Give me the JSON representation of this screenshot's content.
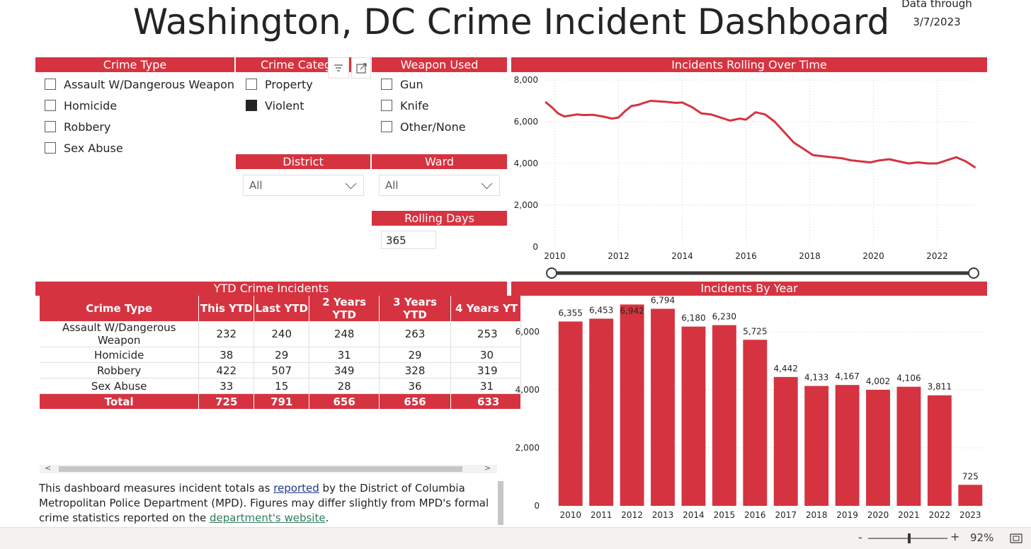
{
  "title": "Washington, DC Crime Incident Dashboard",
  "data_through": {
    "label": "Data through",
    "date": "3/7/2023"
  },
  "filters": {
    "crime_type": {
      "header": "Crime Type",
      "options": [
        {
          "label": "Assault W/Dangerous Weapon",
          "checked": false
        },
        {
          "label": "Homicide",
          "checked": false
        },
        {
          "label": "Robbery",
          "checked": false
        },
        {
          "label": "Sex Abuse",
          "checked": false
        }
      ]
    },
    "crime_category": {
      "header": "Crime Categ",
      "options": [
        {
          "label": "Property",
          "checked": false
        },
        {
          "label": "Violent",
          "checked": true
        }
      ]
    },
    "weapon_used": {
      "header": "Weapon Used",
      "options": [
        {
          "label": "Gun",
          "checked": false
        },
        {
          "label": "Knife",
          "checked": false
        },
        {
          "label": "Other/None",
          "checked": false
        }
      ]
    },
    "district": {
      "header": "District",
      "value": "All"
    },
    "ward": {
      "header": "Ward",
      "value": "All"
    },
    "rolling_days": {
      "header": "Rolling Days",
      "value": "365"
    }
  },
  "ytd": {
    "header": "YTD Crime Incidents",
    "columns": [
      "Crime Type",
      "This YTD",
      "Last YTD",
      "2 Years YTD",
      "3 Years YTD",
      "4 Years YT"
    ],
    "rows": [
      [
        "Assault W/Dangerous Weapon",
        "232",
        "240",
        "248",
        "263",
        "253"
      ],
      [
        "Homicide",
        "38",
        "29",
        "31",
        "29",
        "30"
      ],
      [
        "Robbery",
        "422",
        "507",
        "349",
        "328",
        "319"
      ],
      [
        "Sex Abuse",
        "33",
        "15",
        "28",
        "36",
        "31"
      ]
    ],
    "total": [
      "Total",
      "725",
      "791",
      "656",
      "656",
      "633"
    ],
    "scroll_left": "<",
    "scroll_right": ">"
  },
  "description": {
    "part1": "This dashboard measures incident totals as ",
    "link1": "reported",
    "part2": " by the District of Columbia Metropolitan Police Department (MPD). Figures may differ slightly from MPD's formal crime statistics reported on the ",
    "link2": "department's website",
    "part3": "."
  },
  "colors": {
    "accent": "#d63341",
    "line": "#d63341",
    "text": "#252423"
  },
  "chart_data": [
    {
      "type": "line",
      "title": "Incidents Rolling Over Time",
      "ylim": [
        0,
        8000
      ],
      "yticks": [
        0,
        2000,
        4000,
        6000,
        8000
      ],
      "ytick_labels": [
        "0",
        "2,000",
        "4,000",
        "6,000",
        "8,000"
      ],
      "xlim": [
        2009.7,
        2023.3
      ],
      "xticks": [
        "2010",
        "2012",
        "2014",
        "2016",
        "2018",
        "2020",
        "2022"
      ],
      "x": [
        2009.7,
        2009.9,
        2010.1,
        2010.3,
        2010.5,
        2010.7,
        2010.9,
        2011.2,
        2011.5,
        2011.8,
        2012.0,
        2012.2,
        2012.4,
        2012.6,
        2012.8,
        2013.0,
        2013.2,
        2013.5,
        2013.8,
        2014.0,
        2014.3,
        2014.6,
        2014.9,
        2015.2,
        2015.5,
        2015.8,
        2016.0,
        2016.3,
        2016.6,
        2016.9,
        2017.2,
        2017.5,
        2017.8,
        2018.1,
        2018.4,
        2018.7,
        2019.0,
        2019.3,
        2019.6,
        2019.9,
        2020.2,
        2020.5,
        2020.8,
        2021.1,
        2021.4,
        2021.7,
        2022.0,
        2022.3,
        2022.6,
        2022.9,
        2023.2
      ],
      "y": [
        6950,
        6700,
        6400,
        6250,
        6300,
        6350,
        6320,
        6330,
        6250,
        6150,
        6200,
        6500,
        6750,
        6800,
        6900,
        7000,
        6980,
        6950,
        6900,
        6920,
        6700,
        6400,
        6350,
        6200,
        6050,
        6150,
        6100,
        6450,
        6350,
        6000,
        5500,
        5000,
        4700,
        4400,
        4350,
        4300,
        4250,
        4150,
        4100,
        4050,
        4150,
        4200,
        4100,
        4000,
        4050,
        4000,
        4000,
        4150,
        4300,
        4100,
        3800
      ]
    },
    {
      "type": "bar",
      "title": "Incidents By Year",
      "categories": [
        "2010",
        "2011",
        "2012",
        "2013",
        "2014",
        "2015",
        "2016",
        "2017",
        "2018",
        "2019",
        "2020",
        "2021",
        "2022",
        "2023"
      ],
      "values": [
        6355,
        6453,
        6942,
        6794,
        6180,
        6230,
        5725,
        4442,
        4133,
        4167,
        4002,
        4106,
        3811,
        725
      ],
      "value_labels": [
        "6,355",
        "6,453",
        "6,942",
        "6,794",
        "6,180",
        "6,230",
        "5,725",
        "4,442",
        "4,133",
        "4,167",
        "4,002",
        "4,106",
        "3,811",
        "725"
      ],
      "ylim": [
        0,
        7000
      ],
      "yticks": [
        0,
        2000,
        4000,
        6000
      ],
      "ytick_labels": [
        "0",
        "2,000",
        "4,000",
        "6,000"
      ]
    }
  ],
  "status_bar": {
    "minus": "-",
    "plus": "+",
    "zoom": "92%",
    "zoom_fraction": 0.52
  }
}
